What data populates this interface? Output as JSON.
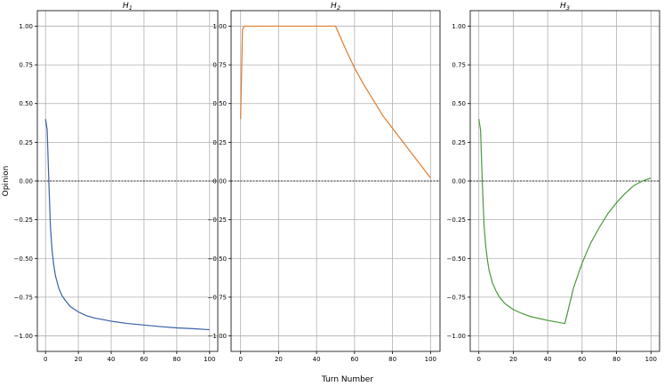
{
  "figure": {
    "ylabel": "Opinion",
    "xlabel": "Turn Number"
  },
  "chart_data": [
    {
      "type": "line",
      "title": "H1",
      "title_main": "H",
      "title_sub": "1",
      "xlim": [
        -5,
        105
      ],
      "ylim": [
        -1.1,
        1.1
      ],
      "xticks": [
        0,
        20,
        40,
        60,
        80,
        100
      ],
      "yticks": [
        -1.0,
        -0.75,
        -0.5,
        -0.25,
        0.0,
        0.25,
        0.5,
        0.75,
        1.0
      ],
      "grid": true,
      "zero_line": true,
      "color": "#3a5fa8",
      "x": [
        0,
        1,
        2,
        3,
        4,
        5,
        6,
        8,
        10,
        12,
        15,
        20,
        25,
        30,
        40,
        50,
        60,
        70,
        80,
        90,
        100
      ],
      "values": [
        0.4,
        0.33,
        0.0,
        -0.3,
        -0.45,
        -0.54,
        -0.61,
        -0.69,
        -0.74,
        -0.77,
        -0.81,
        -0.845,
        -0.87,
        -0.885,
        -0.905,
        -0.92,
        -0.93,
        -0.94,
        -0.948,
        -0.953,
        -0.96
      ]
    },
    {
      "type": "line",
      "title": "H2",
      "title_main": "H",
      "title_sub": "2",
      "xlim": [
        -5,
        105
      ],
      "ylim": [
        -1.1,
        1.1
      ],
      "xticks": [
        0,
        20,
        40,
        60,
        80,
        100
      ],
      "yticks": [
        -1.0,
        -0.75,
        -0.5,
        -0.25,
        0.0,
        0.25,
        0.5,
        0.75,
        1.0
      ],
      "grid": true,
      "zero_line": true,
      "color": "#e07b2a",
      "x": [
        0,
        1,
        2,
        10,
        20,
        30,
        40,
        50,
        55,
        60,
        65,
        70,
        75,
        80,
        85,
        90,
        95,
        100
      ],
      "values": [
        0.4,
        0.98,
        1.0,
        1.0,
        1.0,
        1.0,
        1.0,
        1.0,
        0.86,
        0.73,
        0.62,
        0.52,
        0.42,
        0.34,
        0.26,
        0.18,
        0.1,
        0.02
      ]
    },
    {
      "type": "line",
      "title": "H3",
      "title_main": "H",
      "title_sub": "3",
      "xlim": [
        -5,
        105
      ],
      "ylim": [
        -1.1,
        1.1
      ],
      "xticks": [
        0,
        20,
        40,
        60,
        80,
        100
      ],
      "yticks": [
        -1.0,
        -0.75,
        -0.5,
        -0.25,
        0.0,
        0.25,
        0.5,
        0.75,
        1.0
      ],
      "grid": true,
      "zero_line": true,
      "color": "#4a9a3a",
      "x": [
        0,
        1,
        2,
        3,
        4,
        5,
        6,
        8,
        10,
        12,
        15,
        20,
        25,
        30,
        40,
        50,
        55,
        60,
        65,
        70,
        75,
        80,
        85,
        90,
        95,
        100
      ],
      "values": [
        0.4,
        0.33,
        0.0,
        -0.28,
        -0.42,
        -0.51,
        -0.58,
        -0.66,
        -0.71,
        -0.75,
        -0.79,
        -0.83,
        -0.855,
        -0.875,
        -0.9,
        -0.92,
        -0.69,
        -0.53,
        -0.4,
        -0.3,
        -0.21,
        -0.14,
        -0.08,
        -0.03,
        0.0,
        0.02
      ]
    }
  ]
}
